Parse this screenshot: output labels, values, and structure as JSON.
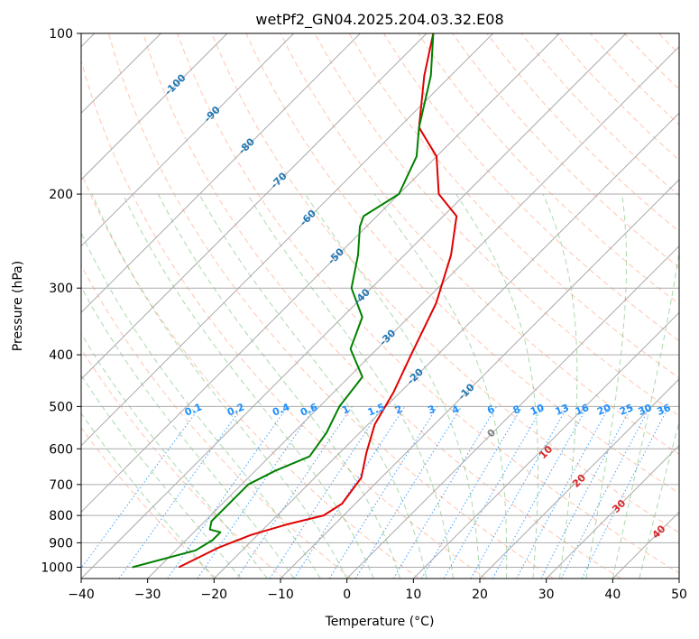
{
  "chart_data": {
    "type": "line",
    "title": "wetPf2_GN04.2025.204.03.32.E08",
    "xlabel": "Temperature (°C)",
    "ylabel": "Pressure (hPa)",
    "xlim": [
      -40,
      50
    ],
    "ylim": [
      1050,
      100
    ],
    "y_scale": "log",
    "grid": true,
    "x_ticks": [
      "−40",
      "−30",
      "−20",
      "−10",
      "0",
      "10",
      "20",
      "30",
      "40",
      "50"
    ],
    "y_ticks": [
      "100",
      "200",
      "300",
      "400",
      "500",
      "600",
      "700",
      "800",
      "900",
      "1000"
    ],
    "colors": {
      "temperature": "#e00000",
      "dewpoint": "#008000",
      "isotherm_label": "#1f77b4",
      "mixing_ratio": "#1e90ff",
      "dry_adiabat": "#ff7f50",
      "moist_adiabat": "#2ca02c",
      "moist_label": "#d62728",
      "grid": "#aaaaaa"
    },
    "isotherm_labels": [
      "-100",
      "-90",
      "-80",
      "-70",
      "-60",
      "-50",
      "-40",
      "-30",
      "-20",
      "-10",
      "0"
    ],
    "mixing_ratio_labels": [
      "0.1",
      "0.2",
      "0.4",
      "0.6",
      "1",
      "1.5",
      "2",
      "3",
      "4",
      "6",
      "8",
      "10",
      "13",
      "16",
      "20",
      "25",
      "30",
      "36"
    ],
    "moist_adiabat_labels": [
      "10",
      "20",
      "30",
      "40"
    ],
    "series": [
      {
        "key": "temperature",
        "points": [
          [
            -27,
            1000
          ],
          [
            -24,
            920
          ],
          [
            -21,
            870
          ],
          [
            -17,
            830
          ],
          [
            -13,
            800
          ],
          [
            -12,
            760
          ],
          [
            -13,
            680
          ],
          [
            -16,
            610
          ],
          [
            -19,
            540
          ],
          [
            -21,
            470
          ],
          [
            -24,
            400
          ],
          [
            -28,
            320
          ],
          [
            -33,
            260
          ],
          [
            -38,
            220
          ],
          [
            -44,
            200
          ],
          [
            -50,
            170
          ],
          [
            -57,
            150
          ],
          [
            -64,
            120
          ],
          [
            -69,
            100
          ]
        ]
      },
      {
        "key": "dewpoint",
        "points": [
          [
            -34,
            1000
          ],
          [
            -27,
            930
          ],
          [
            -26,
            890
          ],
          [
            -26,
            860
          ],
          [
            -28,
            850
          ],
          [
            -29,
            820
          ],
          [
            -29,
            790
          ],
          [
            -29,
            750
          ],
          [
            -29,
            700
          ],
          [
            -27,
            660
          ],
          [
            -24,
            620
          ],
          [
            -25,
            560
          ],
          [
            -27,
            500
          ],
          [
            -28,
            440
          ],
          [
            -34,
            390
          ],
          [
            -37,
            340
          ],
          [
            -43,
            300
          ],
          [
            -47,
            260
          ],
          [
            -51,
            230
          ],
          [
            -52,
            220
          ],
          [
            -50,
            200
          ],
          [
            -53,
            170
          ],
          [
            -57,
            150
          ],
          [
            -63,
            120
          ],
          [
            -69,
            100
          ]
        ]
      }
    ]
  }
}
